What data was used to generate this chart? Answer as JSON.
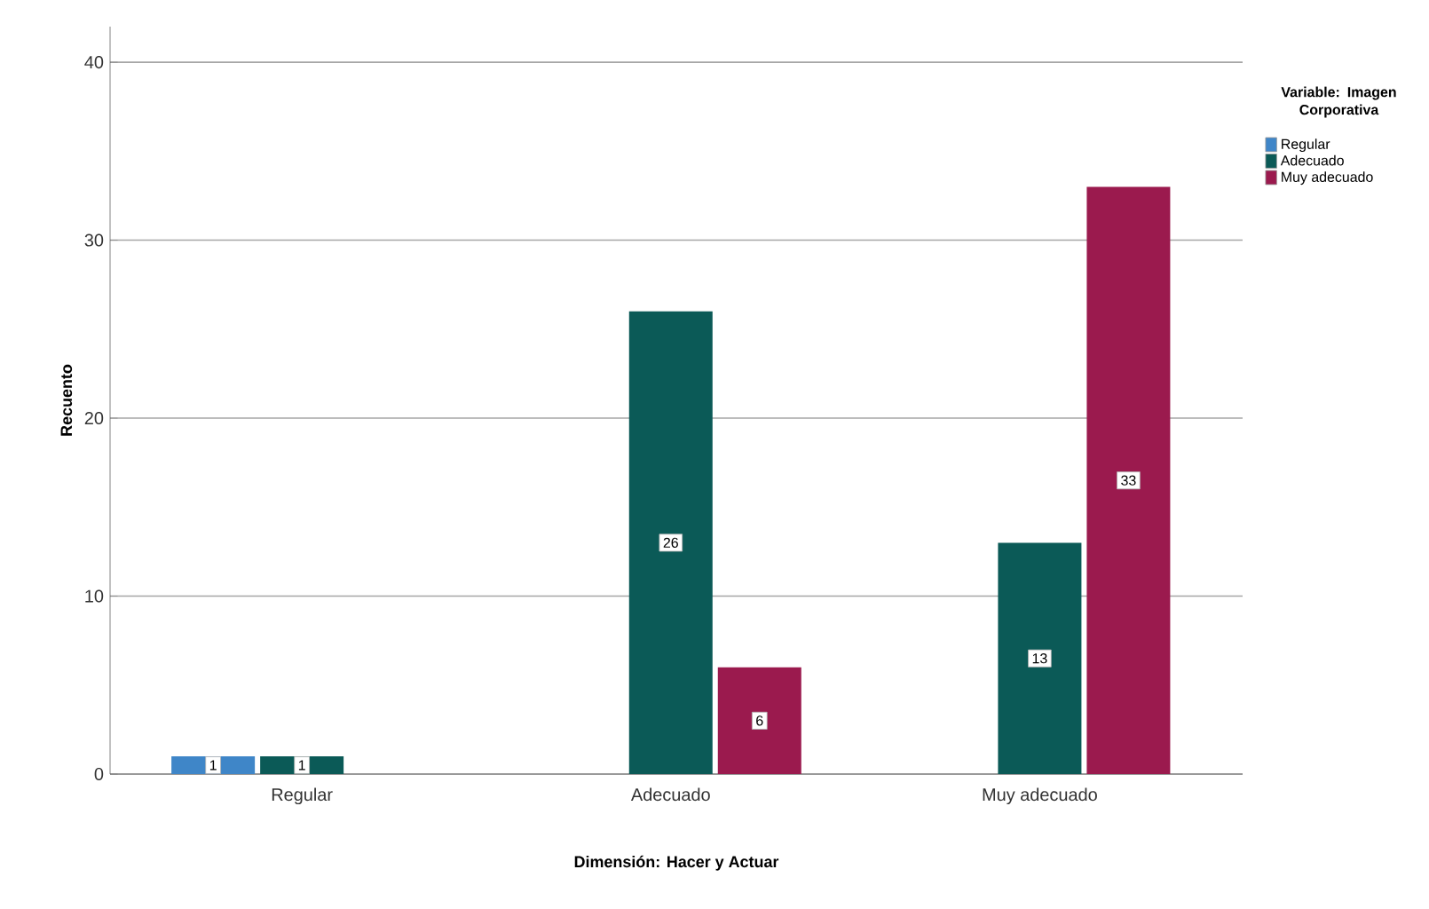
{
  "chart_data": {
    "type": "bar",
    "xlabel": "Dimensión: Hacer y Actuar",
    "ylabel": "Recuento",
    "legend_title": "Variable: Imagen Corporativa",
    "categories": [
      "Regular",
      "Adecuado",
      "Muy adecuado"
    ],
    "series": [
      {
        "name": "Regular",
        "color": "#3f86c8",
        "values": [
          1,
          null,
          null
        ]
      },
      {
        "name": "Adecuado",
        "color": "#0b5a57",
        "values": [
          1,
          26,
          13
        ]
      },
      {
        "name": "Muy adecuado",
        "color": "#9b1a4e",
        "values": [
          null,
          6,
          33
        ]
      }
    ],
    "ylim": [
      0,
      42
    ],
    "yticks": [
      0,
      10,
      20,
      30,
      40
    ],
    "grid": "y",
    "legend": "top right",
    "data_labels": true
  }
}
